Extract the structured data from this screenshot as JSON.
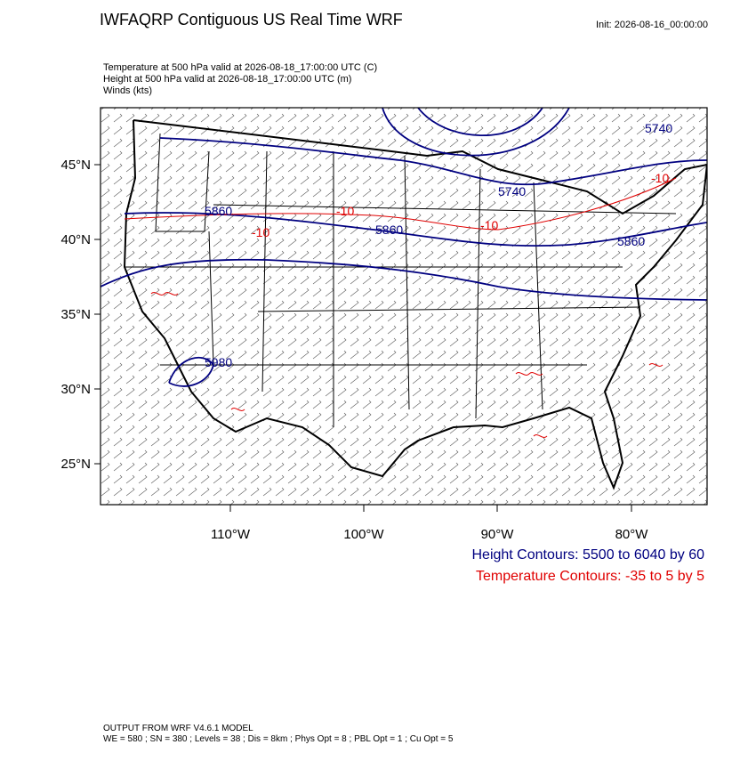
{
  "header": {
    "title": "IWFAQRP Contiguous US Real Time WRF",
    "init": "Init: 2026-08-16_00:00:00"
  },
  "fields": [
    "Temperature at 500 hPa valid at 2026-08-18_17:00:00 UTC   (C)",
    "Height at 500 hPa valid at 2026-08-18_17:00:00 UTC   (m)",
    "Winds   (kts)"
  ],
  "map": {
    "lat_labels": [
      "45°N",
      "40°N",
      "35°N",
      "30°N",
      "25°N"
    ],
    "lon_labels": [
      "110°W",
      "100°W",
      "90°W",
      "80°W"
    ],
    "height_contour_labels": [
      "5740",
      "5860",
      "5860",
      "5860",
      "5740",
      "5980"
    ],
    "temperature_contour_labels": [
      "-10",
      "-10",
      "-10",
      "-10"
    ]
  },
  "legend": {
    "height": "Height Contours: 5500 to 6040 by 60",
    "temperature": "Temperature Contours: -35 to 5 by 5"
  },
  "footer": {
    "model": "OUTPUT FROM WRF V4.6.1 MODEL",
    "settings": "WE = 580 ; SN = 380 ; Levels = 38 ; Dis = 8km ; Phys Opt = 8 ; PBL Opt = 1 ; Cu Opt = 5"
  }
}
